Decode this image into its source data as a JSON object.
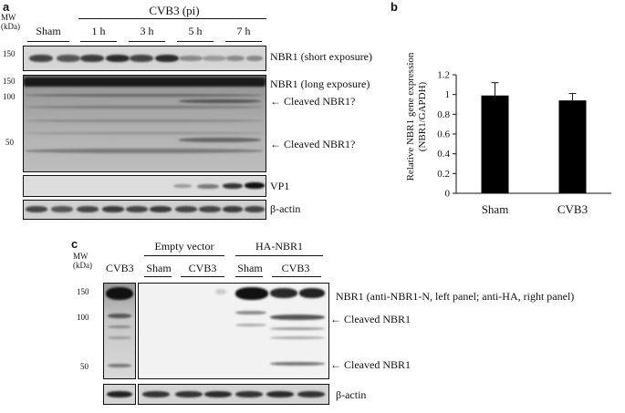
{
  "panel_a": {
    "letter": "a",
    "mw_label": "MW\n(kDa)",
    "group_title": "CVB3 (pi)",
    "lanes": [
      "Sham",
      "1 h",
      "3 h",
      "5 h",
      "7 h"
    ],
    "markers": [
      "150",
      "150",
      "100",
      "50"
    ],
    "blot_labels": {
      "short": "NBR1 (short exposure)",
      "long": "NBR1 (long exposure)",
      "cleaved1": "← Cleaved NBR1?",
      "cleaved2": "← Cleaved NBR1?",
      "vp1": "VP1",
      "actin": "β-actin"
    }
  },
  "panel_b": {
    "letter": "b",
    "ylabel": "Relative NBR1 gene expression\n(NBR1/GAPDH)",
    "chart_data": {
      "type": "bar",
      "categories": [
        "Sham",
        "CVB3"
      ],
      "values": [
        0.99,
        0.94
      ],
      "errors": [
        0.13,
        0.07
      ],
      "ylim": [
        0,
        1.2
      ],
      "yticks": [
        "0",
        "0.2",
        "0.4",
        "0.6",
        "0.8",
        "1",
        "1.2"
      ],
      "bar_color": "#000000"
    }
  },
  "panel_c": {
    "letter": "c",
    "mw_label": "MW\n(kDa)",
    "left_lane": "CVB3",
    "group_empty": "Empty vector",
    "group_ha": "HA-NBR1",
    "lanes": [
      "Sham",
      "CVB3",
      "Sham",
      "CVB3"
    ],
    "markers": [
      "150",
      "100",
      "50"
    ],
    "blot_labels": {
      "nbr1": "NBR1 (anti-NBR1-N, left panel; anti-HA, right panel)",
      "cleaved1": "← Cleaved NBR1",
      "cleaved2": "← Cleaved NBR1",
      "actin": "β-actin"
    }
  }
}
